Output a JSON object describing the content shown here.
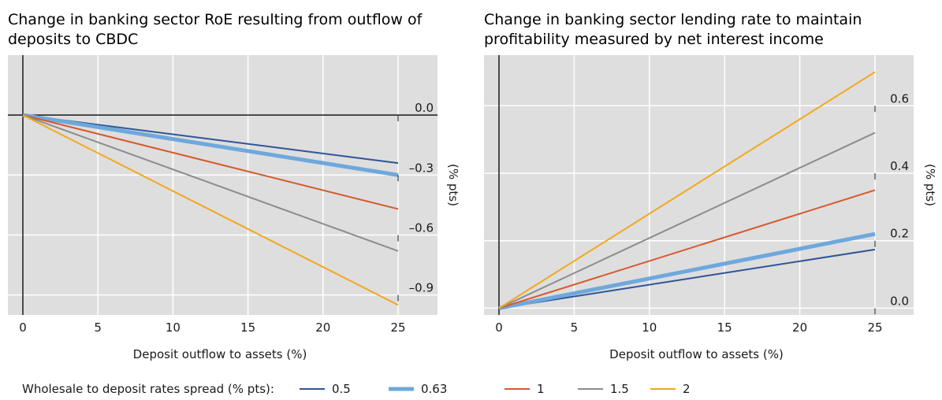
{
  "chart_data": [
    {
      "type": "line",
      "title": "Change in banking sector RoE resulting from outflow of deposits to CBDC",
      "title_lines": [
        "Change in banking sector RoE resulting from outflow of",
        "deposits to CBDC"
      ],
      "xlabel": "Deposit outflow to assets (%)",
      "ylabel": "(% pts)",
      "xlim": [
        -1,
        25
      ],
      "ylim": [
        -1.0,
        0.3
      ],
      "xticks": [
        0,
        5,
        10,
        15,
        20,
        25
      ],
      "xtick_labels": [
        "0",
        "5",
        "10",
        "15",
        "20",
        "25"
      ],
      "yticks": [
        0.0,
        -0.3,
        -0.6,
        -0.9
      ],
      "ytick_labels": [
        "0.0",
        "–0.3",
        "–0.6",
        "–0.9"
      ],
      "zero_line": true,
      "grid": "vertical",
      "background": "#dedede",
      "series": [
        {
          "name": "0.5",
          "color": "#2f5597",
          "width": 2,
          "x": [
            0,
            25
          ],
          "y": [
            0,
            -0.24
          ]
        },
        {
          "name": "0.63",
          "color": "#6ea8dc",
          "width": 5,
          "x": [
            0,
            25
          ],
          "y": [
            0,
            -0.3
          ]
        },
        {
          "name": "1",
          "color": "#d9582b",
          "width": 2,
          "x": [
            0,
            25
          ],
          "y": [
            0,
            -0.47
          ]
        },
        {
          "name": "1.5",
          "color": "#8c8c8c",
          "width": 2,
          "x": [
            0,
            25
          ],
          "y": [
            0,
            -0.68
          ]
        },
        {
          "name": "2",
          "color": "#f2a81d",
          "width": 2,
          "x": [
            0,
            25
          ],
          "y": [
            0,
            -0.95
          ]
        }
      ]
    },
    {
      "type": "line",
      "title": "Change in banking sector lending rate to maintain profitability measured by net interest income",
      "title_lines": [
        "Change in banking sector lending rate to maintain",
        "profitability measured by net interest income"
      ],
      "xlabel": "Deposit outflow to assets (%)",
      "ylabel": "(% pts)",
      "xlim": [
        0,
        25
      ],
      "ylim": [
        -0.02,
        0.75
      ],
      "xticks": [
        0,
        5,
        10,
        15,
        20,
        25
      ],
      "xtick_labels": [
        "0",
        "5",
        "10",
        "15",
        "20",
        "25"
      ],
      "yticks": [
        0.0,
        0.2,
        0.4,
        0.6
      ],
      "ytick_labels": [
        "0.0",
        "0.2",
        "0.4",
        "0.6"
      ],
      "zero_line": false,
      "grid": "vertical",
      "background": "#dedede",
      "series": [
        {
          "name": "0.5",
          "color": "#2f5597",
          "width": 2,
          "x": [
            0,
            25
          ],
          "y": [
            0,
            0.174
          ]
        },
        {
          "name": "0.63",
          "color": "#6ea8dc",
          "width": 5,
          "x": [
            0,
            25
          ],
          "y": [
            0,
            0.22
          ]
        },
        {
          "name": "1",
          "color": "#d9582b",
          "width": 2,
          "x": [
            0,
            25
          ],
          "y": [
            0,
            0.35
          ]
        },
        {
          "name": "1.5",
          "color": "#8c8c8c",
          "width": 2,
          "x": [
            0,
            25
          ],
          "y": [
            0,
            0.52
          ]
        },
        {
          "name": "2",
          "color": "#f2a81d",
          "width": 2,
          "x": [
            0,
            25
          ],
          "y": [
            0,
            0.7
          ]
        }
      ]
    }
  ],
  "legend": {
    "title": "Wholesale to deposit rates spread (% pts):",
    "placement": "bottom"
  }
}
